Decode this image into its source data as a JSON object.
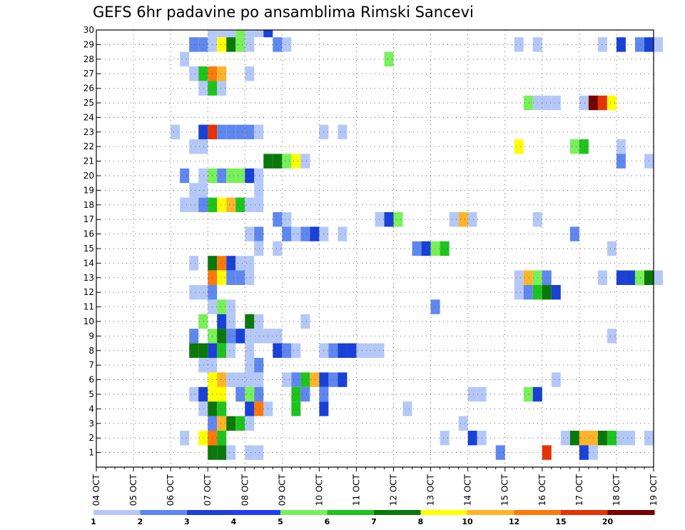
{
  "chart_data": {
    "type": "heatmap",
    "title": "GEFS 6hr padavine po ansamblima Rimski Sancevi",
    "y_ticks": [
      "1",
      "2",
      "3",
      "4",
      "5",
      "6",
      "7",
      "8",
      "9",
      "10",
      "11",
      "12",
      "13",
      "14",
      "15",
      "16",
      "17",
      "18",
      "19",
      "20",
      "21",
      "22",
      "23",
      "24",
      "25",
      "26",
      "27",
      "28",
      "29",
      "30"
    ],
    "y_range": [
      0,
      30
    ],
    "x_ticks": [
      "04 OCT",
      "05 OCT",
      "06 OCT",
      "07 OCT",
      "08 OCT",
      "09 OCT",
      "10 OCT",
      "11 OCT",
      "12 OCT",
      "13 OCT",
      "14 OCT",
      "15 OCT",
      "16 OCT",
      "17 OCT",
      "18 OCT",
      "19 OCT"
    ],
    "x_range": [
      "2023-10-04 00:00",
      "2023-10-19 00:00"
    ],
    "time_step_hours": 6,
    "grid": true,
    "legend_position": "bottom",
    "colorbar": {
      "labels": [
        "1",
        "2",
        "3",
        "4",
        "5",
        "6",
        "7",
        "8",
        "10",
        "12",
        "15",
        "20"
      ],
      "colors": [
        "#b4c8f8",
        "#5f87f0",
        "#1941d7",
        "#1e3cff",
        "#78f05a",
        "#1ec31e",
        "#0a780a",
        "#ffff00",
        "#ffb428",
        "#ff780a",
        "#e63200",
        "#780000"
      ]
    },
    "cells": [
      {
        "m": 30,
        "t": "10-07 00",
        "c": 0
      },
      {
        "m": 30,
        "t": "10-07 06",
        "c": 0
      },
      {
        "m": 30,
        "t": "10-07 12",
        "c": 0
      },
      {
        "m": 30,
        "t": "10-07 18",
        "c": 4
      },
      {
        "m": 30,
        "t": "10-08 00",
        "c": 0
      },
      {
        "m": 30,
        "t": "10-08 06",
        "c": 0
      },
      {
        "m": 30,
        "t": "10-08 12",
        "c": 2
      },
      {
        "m": 29,
        "t": "10-06 12",
        "c": 1
      },
      {
        "m": 29,
        "t": "10-06 18",
        "c": 1
      },
      {
        "m": 29,
        "t": "10-07 00",
        "c": 0
      },
      {
        "m": 29,
        "t": "10-07 06",
        "c": 7
      },
      {
        "m": 29,
        "t": "10-07 12",
        "c": 6
      },
      {
        "m": 29,
        "t": "10-07 18",
        "c": 4
      },
      {
        "m": 29,
        "t": "10-08 00",
        "c": 0
      },
      {
        "m": 29,
        "t": "10-08 18",
        "c": 1
      },
      {
        "m": 29,
        "t": "10-09 00",
        "c": 0
      },
      {
        "m": 29,
        "t": "10-15 06",
        "c": 0
      },
      {
        "m": 29,
        "t": "10-15 18",
        "c": 0
      },
      {
        "m": 29,
        "t": "10-17 12",
        "c": 0
      },
      {
        "m": 29,
        "t": "10-18 00",
        "c": 2
      },
      {
        "m": 29,
        "t": "10-18 12",
        "c": 1
      },
      {
        "m": 29,
        "t": "10-18 18",
        "c": 2
      },
      {
        "m": 29,
        "t": "10-19 00",
        "c": 0
      },
      {
        "m": 28,
        "t": "10-06 06",
        "c": 0
      },
      {
        "m": 28,
        "t": "10-11 18",
        "c": 4
      },
      {
        "m": 27,
        "t": "10-06 12",
        "c": 0
      },
      {
        "m": 27,
        "t": "10-06 18",
        "c": 5
      },
      {
        "m": 27,
        "t": "10-07 00",
        "c": 9
      },
      {
        "m": 27,
        "t": "10-07 06",
        "c": 8
      },
      {
        "m": 27,
        "t": "10-08 00",
        "c": 0
      },
      {
        "m": 26,
        "t": "10-06 18",
        "c": 0
      },
      {
        "m": 26,
        "t": "10-07 00",
        "c": 5
      },
      {
        "m": 26,
        "t": "10-07 06",
        "c": 0
      },
      {
        "m": 25,
        "t": "10-15 12",
        "c": 4
      },
      {
        "m": 25,
        "t": "10-15 18",
        "c": 0
      },
      {
        "m": 25,
        "t": "10-16 00",
        "c": 0
      },
      {
        "m": 25,
        "t": "10-16 06",
        "c": 0
      },
      {
        "m": 25,
        "t": "10-17 00",
        "c": 0
      },
      {
        "m": 25,
        "t": "10-17 06",
        "c": 11
      },
      {
        "m": 25,
        "t": "10-17 12",
        "c": 10
      },
      {
        "m": 25,
        "t": "10-17 18",
        "c": 7
      },
      {
        "m": 23,
        "t": "10-06 00",
        "c": 0
      },
      {
        "m": 23,
        "t": "10-06 18",
        "c": 2
      },
      {
        "m": 23,
        "t": "10-07 00",
        "c": 10
      },
      {
        "m": 23,
        "t": "10-07 06",
        "c": 1
      },
      {
        "m": 23,
        "t": "10-07 12",
        "c": 1
      },
      {
        "m": 23,
        "t": "10-07 18",
        "c": 1
      },
      {
        "m": 23,
        "t": "10-08 00",
        "c": 1
      },
      {
        "m": 23,
        "t": "10-08 06",
        "c": 0
      },
      {
        "m": 23,
        "t": "10-10 00",
        "c": 0
      },
      {
        "m": 23,
        "t": "10-10 12",
        "c": 0
      },
      {
        "m": 22,
        "t": "10-06 12",
        "c": 0
      },
      {
        "m": 22,
        "t": "10-06 18",
        "c": 0
      },
      {
        "m": 22,
        "t": "10-15 06",
        "c": 7
      },
      {
        "m": 22,
        "t": "10-16 18",
        "c": 4
      },
      {
        "m": 22,
        "t": "10-17 00",
        "c": 5
      },
      {
        "m": 22,
        "t": "10-18 00",
        "c": 0
      },
      {
        "m": 21,
        "t": "10-08 12",
        "c": 6
      },
      {
        "m": 21,
        "t": "10-08 18",
        "c": 6
      },
      {
        "m": 21,
        "t": "10-09 00",
        "c": 4
      },
      {
        "m": 21,
        "t": "10-09 06",
        "c": 7
      },
      {
        "m": 21,
        "t": "10-09 12",
        "c": 0
      },
      {
        "m": 21,
        "t": "10-18 00",
        "c": 1
      },
      {
        "m": 21,
        "t": "10-18 18",
        "c": 0
      },
      {
        "m": 20,
        "t": "10-06 06",
        "c": 1
      },
      {
        "m": 20,
        "t": "10-06 18",
        "c": 0
      },
      {
        "m": 20,
        "t": "10-07 00",
        "c": 4
      },
      {
        "m": 20,
        "t": "10-07 06",
        "c": 1
      },
      {
        "m": 20,
        "t": "10-07 12",
        "c": 4
      },
      {
        "m": 20,
        "t": "10-07 18",
        "c": 4
      },
      {
        "m": 20,
        "t": "10-08 00",
        "c": 2
      },
      {
        "m": 20,
        "t": "10-08 06",
        "c": 0
      },
      {
        "m": 19,
        "t": "10-06 12",
        "c": 0
      },
      {
        "m": 19,
        "t": "10-06 18",
        "c": 0
      },
      {
        "m": 19,
        "t": "10-08 06",
        "c": 0
      },
      {
        "m": 18,
        "t": "10-06 06",
        "c": 0
      },
      {
        "m": 18,
        "t": "10-06 12",
        "c": 0
      },
      {
        "m": 18,
        "t": "10-06 18",
        "c": 1
      },
      {
        "m": 18,
        "t": "10-07 00",
        "c": 5
      },
      {
        "m": 18,
        "t": "10-07 06",
        "c": 7
      },
      {
        "m": 18,
        "t": "10-07 12",
        "c": 8
      },
      {
        "m": 18,
        "t": "10-07 18",
        "c": 5
      },
      {
        "m": 18,
        "t": "10-08 00",
        "c": 0
      },
      {
        "m": 18,
        "t": "10-08 06",
        "c": 0
      },
      {
        "m": 17,
        "t": "10-08 18",
        "c": 1
      },
      {
        "m": 17,
        "t": "10-09 00",
        "c": 0
      },
      {
        "m": 17,
        "t": "10-11 12",
        "c": 0
      },
      {
        "m": 17,
        "t": "10-11 18",
        "c": 2
      },
      {
        "m": 17,
        "t": "10-12 00",
        "c": 4
      },
      {
        "m": 17,
        "t": "10-13 12",
        "c": 0
      },
      {
        "m": 17,
        "t": "10-13 18",
        "c": 8
      },
      {
        "m": 17,
        "t": "10-14 00",
        "c": 0
      },
      {
        "m": 17,
        "t": "10-15 18",
        "c": 0
      },
      {
        "m": 16,
        "t": "10-08 00",
        "c": 0
      },
      {
        "m": 16,
        "t": "10-08 06",
        "c": 1
      },
      {
        "m": 16,
        "t": "10-09 00",
        "c": 1
      },
      {
        "m": 16,
        "t": "10-09 06",
        "c": 0
      },
      {
        "m": 16,
        "t": "10-09 12",
        "c": 1
      },
      {
        "m": 16,
        "t": "10-09 18",
        "c": 2
      },
      {
        "m": 16,
        "t": "10-10 00",
        "c": 0
      },
      {
        "m": 16,
        "t": "10-10 12",
        "c": 0
      },
      {
        "m": 16,
        "t": "10-16 18",
        "c": 1
      },
      {
        "m": 15,
        "t": "10-08 06",
        "c": 0
      },
      {
        "m": 15,
        "t": "10-08 18",
        "c": 0
      },
      {
        "m": 15,
        "t": "10-12 12",
        "c": 1
      },
      {
        "m": 15,
        "t": "10-12 18",
        "c": 2
      },
      {
        "m": 15,
        "t": "10-13 00",
        "c": 4
      },
      {
        "m": 15,
        "t": "10-13 06",
        "c": 5
      },
      {
        "m": 15,
        "t": "10-17 18",
        "c": 0
      },
      {
        "m": 14,
        "t": "10-06 12",
        "c": 0
      },
      {
        "m": 14,
        "t": "10-07 00",
        "c": 6
      },
      {
        "m": 14,
        "t": "10-07 06",
        "c": 9
      },
      {
        "m": 14,
        "t": "10-07 12",
        "c": 2
      },
      {
        "m": 14,
        "t": "10-07 18",
        "c": 0
      },
      {
        "m": 14,
        "t": "10-08 00",
        "c": 0
      },
      {
        "m": 13,
        "t": "10-07 00",
        "c": 9
      },
      {
        "m": 13,
        "t": "10-07 06",
        "c": 7
      },
      {
        "m": 13,
        "t": "10-07 12",
        "c": 1
      },
      {
        "m": 13,
        "t": "10-07 18",
        "c": 1
      },
      {
        "m": 13,
        "t": "10-08 00",
        "c": 0
      },
      {
        "m": 13,
        "t": "10-15 06",
        "c": 0
      },
      {
        "m": 13,
        "t": "10-15 12",
        "c": 8
      },
      {
        "m": 13,
        "t": "10-15 18",
        "c": 4
      },
      {
        "m": 13,
        "t": "10-16 00",
        "c": 1
      },
      {
        "m": 13,
        "t": "10-17 12",
        "c": 0
      },
      {
        "m": 13,
        "t": "10-18 00",
        "c": 2
      },
      {
        "m": 13,
        "t": "10-18 06",
        "c": 2
      },
      {
        "m": 13,
        "t": "10-18 12",
        "c": 4
      },
      {
        "m": 13,
        "t": "10-18 18",
        "c": 6
      },
      {
        "m": 13,
        "t": "10-19 00",
        "c": 0
      },
      {
        "m": 12,
        "t": "10-06 12",
        "c": 0
      },
      {
        "m": 12,
        "t": "10-06 18",
        "c": 0
      },
      {
        "m": 12,
        "t": "10-07 00",
        "c": 1
      },
      {
        "m": 12,
        "t": "10-15 06",
        "c": 0
      },
      {
        "m": 12,
        "t": "10-15 12",
        "c": 1
      },
      {
        "m": 12,
        "t": "10-15 18",
        "c": 5
      },
      {
        "m": 12,
        "t": "10-16 00",
        "c": 6
      },
      {
        "m": 12,
        "t": "10-16 06",
        "c": 2
      },
      {
        "m": 11,
        "t": "10-07 00",
        "c": 0
      },
      {
        "m": 11,
        "t": "10-07 06",
        "c": 4
      },
      {
        "m": 11,
        "t": "10-07 12",
        "c": 0
      },
      {
        "m": 11,
        "t": "10-13 00",
        "c": 1
      },
      {
        "m": 10,
        "t": "10-06 18",
        "c": 4
      },
      {
        "m": 10,
        "t": "10-07 06",
        "c": 2
      },
      {
        "m": 10,
        "t": "10-07 12",
        "c": 0
      },
      {
        "m": 10,
        "t": "10-08 00",
        "c": 6
      },
      {
        "m": 10,
        "t": "10-08 06",
        "c": 0
      },
      {
        "m": 10,
        "t": "10-09 12",
        "c": 0
      },
      {
        "m": 9,
        "t": "10-06 12",
        "c": 1
      },
      {
        "m": 9,
        "t": "10-07 00",
        "c": 4
      },
      {
        "m": 9,
        "t": "10-07 06",
        "c": 6
      },
      {
        "m": 9,
        "t": "10-07 12",
        "c": 1
      },
      {
        "m": 9,
        "t": "10-07 18",
        "c": 2
      },
      {
        "m": 9,
        "t": "10-08 00",
        "c": 0
      },
      {
        "m": 9,
        "t": "10-08 06",
        "c": 0
      },
      {
        "m": 9,
        "t": "10-08 12",
        "c": 0
      },
      {
        "m": 9,
        "t": "10-08 18",
        "c": 0
      },
      {
        "m": 9,
        "t": "10-17 18",
        "c": 0
      },
      {
        "m": 8,
        "t": "10-06 12",
        "c": 6
      },
      {
        "m": 8,
        "t": "10-06 18",
        "c": 6
      },
      {
        "m": 8,
        "t": "10-07 00",
        "c": 2
      },
      {
        "m": 8,
        "t": "10-07 06",
        "c": 5
      },
      {
        "m": 8,
        "t": "10-07 12",
        "c": 0
      },
      {
        "m": 8,
        "t": "10-08 00",
        "c": 0
      },
      {
        "m": 8,
        "t": "10-08 18",
        "c": 2
      },
      {
        "m": 8,
        "t": "10-09 00",
        "c": 1
      },
      {
        "m": 8,
        "t": "10-09 06",
        "c": 0
      },
      {
        "m": 8,
        "t": "10-10 00",
        "c": 0
      },
      {
        "m": 8,
        "t": "10-10 06",
        "c": 1
      },
      {
        "m": 8,
        "t": "10-10 12",
        "c": 2
      },
      {
        "m": 8,
        "t": "10-10 18",
        "c": 2
      },
      {
        "m": 8,
        "t": "10-11 00",
        "c": 0
      },
      {
        "m": 8,
        "t": "10-11 06",
        "c": 0
      },
      {
        "m": 8,
        "t": "10-11 12",
        "c": 0
      },
      {
        "m": 7,
        "t": "10-06 18",
        "c": 0
      },
      {
        "m": 7,
        "t": "10-07 00",
        "c": 0
      },
      {
        "m": 7,
        "t": "10-08 00",
        "c": 0
      },
      {
        "m": 7,
        "t": "10-08 06",
        "c": 1
      },
      {
        "m": 6,
        "t": "10-07 00",
        "c": 7
      },
      {
        "m": 6,
        "t": "10-07 06",
        "c": 8
      },
      {
        "m": 6,
        "t": "10-07 12",
        "c": 0
      },
      {
        "m": 6,
        "t": "10-07 18",
        "c": 0
      },
      {
        "m": 6,
        "t": "10-08 00",
        "c": 0
      },
      {
        "m": 6,
        "t": "10-08 06",
        "c": 0
      },
      {
        "m": 6,
        "t": "10-09 00",
        "c": 0
      },
      {
        "m": 6,
        "t": "10-09 06",
        "c": 1
      },
      {
        "m": 6,
        "t": "10-09 12",
        "c": 5
      },
      {
        "m": 6,
        "t": "10-09 18",
        "c": 8
      },
      {
        "m": 6,
        "t": "10-10 00",
        "c": 2
      },
      {
        "m": 6,
        "t": "10-10 06",
        "c": 1
      },
      {
        "m": 6,
        "t": "10-10 12",
        "c": 2
      },
      {
        "m": 6,
        "t": "10-16 06",
        "c": 0
      },
      {
        "m": 5,
        "t": "10-06 12",
        "c": 0
      },
      {
        "m": 5,
        "t": "10-06 18",
        "c": 2
      },
      {
        "m": 5,
        "t": "10-07 00",
        "c": 7
      },
      {
        "m": 5,
        "t": "10-07 06",
        "c": 7
      },
      {
        "m": 5,
        "t": "10-07 18",
        "c": 1
      },
      {
        "m": 5,
        "t": "10-08 00",
        "c": 4
      },
      {
        "m": 5,
        "t": "10-08 06",
        "c": 1
      },
      {
        "m": 5,
        "t": "10-09 06",
        "c": 5
      },
      {
        "m": 5,
        "t": "10-09 12",
        "c": 1
      },
      {
        "m": 5,
        "t": "10-10 00",
        "c": 1
      },
      {
        "m": 5,
        "t": "10-14 00",
        "c": 0
      },
      {
        "m": 5,
        "t": "10-14 06",
        "c": 0
      },
      {
        "m": 5,
        "t": "10-15 12",
        "c": 4
      },
      {
        "m": 5,
        "t": "10-15 18",
        "c": 2
      },
      {
        "m": 4,
        "t": "10-06 18",
        "c": 0
      },
      {
        "m": 4,
        "t": "10-07 00",
        "c": 6
      },
      {
        "m": 4,
        "t": "10-07 06",
        "c": 5
      },
      {
        "m": 4,
        "t": "10-08 00",
        "c": 2
      },
      {
        "m": 4,
        "t": "10-08 06",
        "c": 9
      },
      {
        "m": 4,
        "t": "10-08 12",
        "c": 0
      },
      {
        "m": 4,
        "t": "10-09 06",
        "c": 5
      },
      {
        "m": 4,
        "t": "10-10 00",
        "c": 2
      },
      {
        "m": 4,
        "t": "10-12 06",
        "c": 0
      },
      {
        "m": 3,
        "t": "10-07 00",
        "c": 1
      },
      {
        "m": 3,
        "t": "10-07 06",
        "c": 8
      },
      {
        "m": 3,
        "t": "10-07 12",
        "c": 6
      },
      {
        "m": 3,
        "t": "10-07 18",
        "c": 5
      },
      {
        "m": 3,
        "t": "10-08 00",
        "c": 0
      },
      {
        "m": 3,
        "t": "10-13 18",
        "c": 0
      },
      {
        "m": 2,
        "t": "10-06 06",
        "c": 0
      },
      {
        "m": 2,
        "t": "10-06 18",
        "c": 7
      },
      {
        "m": 2,
        "t": "10-07 00",
        "c": 9
      },
      {
        "m": 2,
        "t": "10-07 06",
        "c": 5
      },
      {
        "m": 2,
        "t": "10-13 06",
        "c": 0
      },
      {
        "m": 2,
        "t": "10-14 00",
        "c": 2
      },
      {
        "m": 2,
        "t": "10-14 06",
        "c": 0
      },
      {
        "m": 2,
        "t": "10-16 12",
        "c": 0
      },
      {
        "m": 2,
        "t": "10-16 18",
        "c": 6
      },
      {
        "m": 2,
        "t": "10-17 00",
        "c": 8
      },
      {
        "m": 2,
        "t": "10-17 06",
        "c": 8
      },
      {
        "m": 2,
        "t": "10-17 12",
        "c": 6
      },
      {
        "m": 2,
        "t": "10-17 18",
        "c": 5
      },
      {
        "m": 2,
        "t": "10-18 00",
        "c": 0
      },
      {
        "m": 2,
        "t": "10-18 06",
        "c": 0
      },
      {
        "m": 2,
        "t": "10-18 18",
        "c": 0
      },
      {
        "m": 1,
        "t": "10-07 00",
        "c": 6
      },
      {
        "m": 1,
        "t": "10-07 06",
        "c": 6
      },
      {
        "m": 1,
        "t": "10-07 12",
        "c": 0
      },
      {
        "m": 1,
        "t": "10-08 00",
        "c": 0
      },
      {
        "m": 1,
        "t": "10-08 06",
        "c": 0
      },
      {
        "m": 1,
        "t": "10-14 18",
        "c": 1
      },
      {
        "m": 1,
        "t": "10-16 00",
        "c": 10
      },
      {
        "m": 1,
        "t": "10-17 00",
        "c": 2
      },
      {
        "m": 1,
        "t": "10-17 06",
        "c": 0
      }
    ]
  }
}
